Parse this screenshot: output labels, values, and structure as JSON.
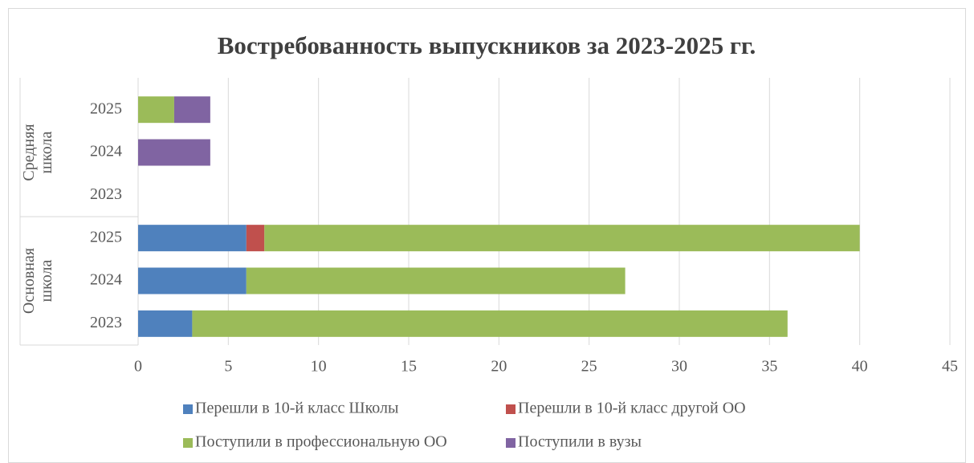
{
  "chart_data": {
    "type": "stacked_barh",
    "title": "Востребованность выпускников за 2023-2025 гг.",
    "categories": [
      "2023",
      "2024",
      "2025",
      "2023",
      "2024",
      "2025"
    ],
    "groups": [
      {
        "name": "Основная школа",
        "size": 3
      },
      {
        "name": "Средняя школа",
        "size": 3
      }
    ],
    "series": [
      {
        "name": "Перешли в 10-й класс Школы",
        "color": "#4f81bd",
        "values": [
          3,
          6,
          6,
          null,
          null,
          null
        ]
      },
      {
        "name": "Перешли в 10-й класс другой ОО",
        "color": "#c0504d",
        "values": [
          null,
          null,
          1,
          null,
          null,
          null
        ]
      },
      {
        "name": "Поступили в профессиональную ОО",
        "color": "#9bbb59",
        "values": [
          33,
          21,
          33,
          null,
          null,
          2
        ]
      },
      {
        "name": "Поступили в вузы",
        "color": "#8064a2",
        "values": [
          null,
          null,
          null,
          null,
          4,
          2
        ]
      }
    ],
    "xlim": [
      0,
      45
    ],
    "xticks": [
      0,
      5,
      10,
      15,
      20,
      25,
      30,
      35,
      40,
      45
    ],
    "grid": true,
    "legend": "bottom"
  }
}
